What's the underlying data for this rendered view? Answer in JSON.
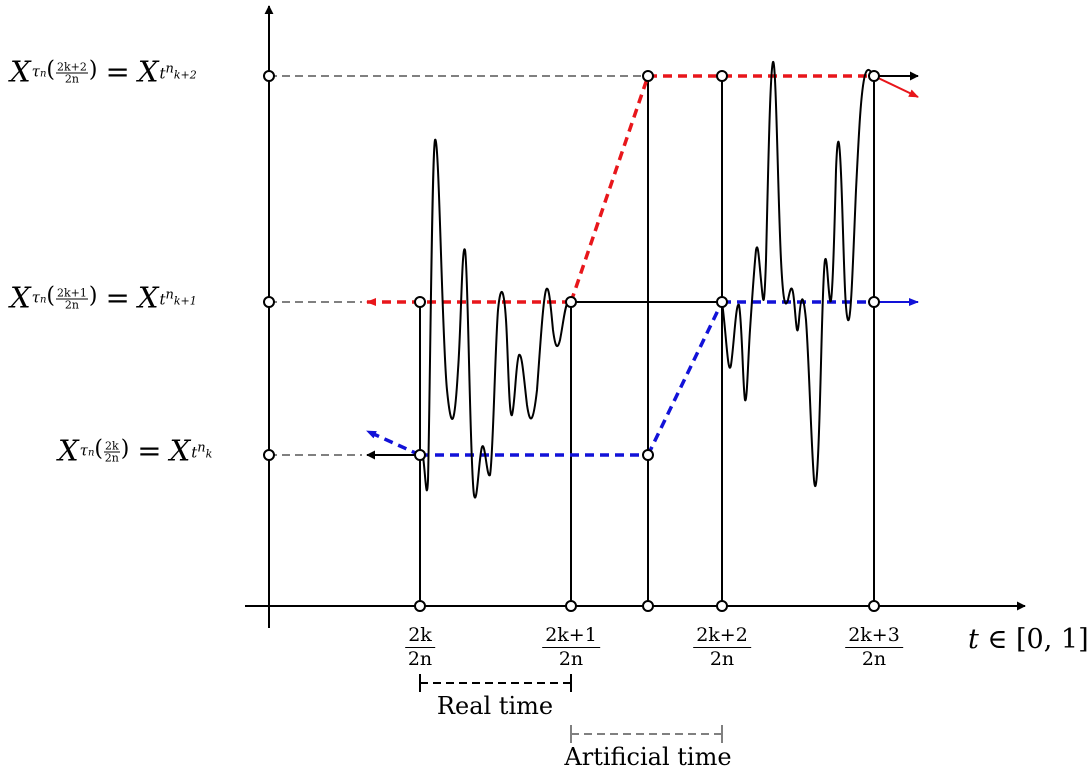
{
  "y_labels": [
    {
      "var": "X",
      "sub": "τ",
      "sub_n": "n",
      "frac_num": "2k+2",
      "frac_den": "2n",
      "rhs_var": "X",
      "rhs_sub": "t",
      "rhs_sup": "n",
      "rhs_idx": "k+2",
      "eq": "="
    },
    {
      "var": "X",
      "sub": "τ",
      "sub_n": "n",
      "frac_num": "2k+1",
      "frac_den": "2n",
      "rhs_var": "X",
      "rhs_sub": "t",
      "rhs_sup": "n",
      "rhs_idx": "k+1",
      "eq": "="
    },
    {
      "var": "X",
      "sub": "τ",
      "sub_n": "n",
      "frac_num": "2k",
      "frac_den": "2n",
      "rhs_var": "X",
      "rhs_sub": "t",
      "rhs_sup": "n",
      "rhs_idx": "k",
      "eq": "="
    }
  ],
  "x_ticks": [
    {
      "num": "2k",
      "den": "2n"
    },
    {
      "num": "2k+1",
      "den": "2n"
    },
    {
      "num": "2k+2",
      "den": "2n"
    },
    {
      "num": "2k+3",
      "den": "2n"
    }
  ],
  "x_axis_label": {
    "var": "t",
    "rest": "∈ [0, 1]"
  },
  "real_time_label": "Real time",
  "artificial_time_label": "Artificial time",
  "colors": {
    "red": "#e8161b",
    "blue": "#1212d8",
    "gray": "#808080",
    "black": "#000000"
  }
}
